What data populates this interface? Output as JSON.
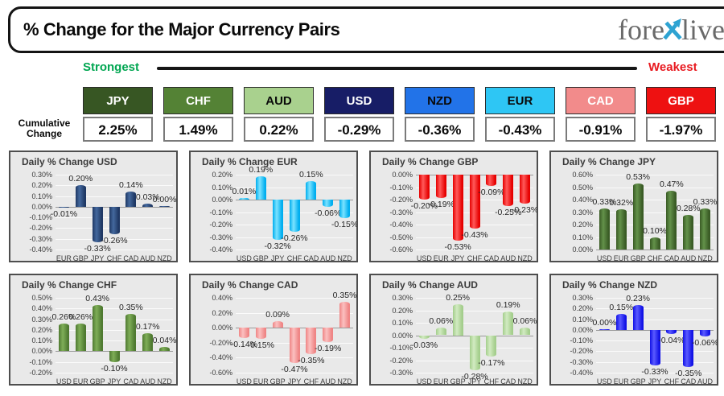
{
  "header": {
    "title": "% Change for the Major Currency Pairs",
    "logo": {
      "part1": "fore",
      "part2": "live",
      "x_color": "#2EA3D2",
      "text_color": "#6a6a6a"
    }
  },
  "scale_bar": {
    "strongest_label": "Strongest",
    "weakest_label": "Weakest",
    "strongest_color": "#00A651",
    "weakest_color": "#E8191F",
    "line_color": "#161616"
  },
  "cumulative": {
    "row_label": "Cumulative Change",
    "items": [
      {
        "code": "JPY",
        "value": "2.25%",
        "bg": "#375623",
        "fg": "#FFFFFF"
      },
      {
        "code": "CHF",
        "value": "1.49%",
        "bg": "#548235",
        "fg": "#FFFFFF"
      },
      {
        "code": "AUD",
        "value": "0.22%",
        "bg": "#A9D18E",
        "fg": "#0a0a0a"
      },
      {
        "code": "USD",
        "value": "-0.29%",
        "bg": "#171D66",
        "fg": "#FFFFFF"
      },
      {
        "code": "NZD",
        "value": "-0.36%",
        "bg": "#2273E8",
        "fg": "#0a0a0a"
      },
      {
        "code": "EUR",
        "value": "-0.43%",
        "bg": "#2EC6F4",
        "fg": "#0a0a0a"
      },
      {
        "code": "CAD",
        "value": "-0.91%",
        "bg": "#F28B8B",
        "fg": "#FFFFFF"
      },
      {
        "code": "GBP",
        "value": "-1.97%",
        "bg": "#EE1111",
        "fg": "#FFFFFF"
      }
    ]
  },
  "chart_data": [
    {
      "type": "bar",
      "title": "Daily % Change USD",
      "categories": [
        "EUR",
        "GBP",
        "JPY",
        "CHF",
        "CAD",
        "AUD",
        "NZD"
      ],
      "values": [
        -0.01,
        0.2,
        -0.33,
        -0.26,
        0.14,
        0.03,
        0.0
      ],
      "ylim": [
        -0.4,
        0.3
      ],
      "yticks": [
        0.3,
        0.2,
        0.1,
        0.0,
        -0.1,
        -0.2,
        -0.3,
        -0.4
      ],
      "grid": true,
      "value_suffix": "%",
      "bar_color": "#1F3864",
      "bar_color_light": "#44699E"
    },
    {
      "type": "bar",
      "title": "Daily % Change EUR",
      "categories": [
        "USD",
        "GBP",
        "JPY",
        "CHF",
        "CAD",
        "AUD",
        "NZD"
      ],
      "values": [
        0.01,
        0.19,
        -0.32,
        -0.26,
        0.15,
        -0.06,
        -0.15
      ],
      "ylim": [
        -0.4,
        0.2
      ],
      "yticks": [
        0.2,
        0.1,
        0.0,
        -0.1,
        -0.2,
        -0.3,
        -0.4
      ],
      "grid": true,
      "value_suffix": "%",
      "bar_color": "#00AEEF",
      "bar_color_light": "#7CE3FF"
    },
    {
      "type": "bar",
      "title": "Daily % Change GBP",
      "categories": [
        "USD",
        "EUR",
        "JPY",
        "CHF",
        "CAD",
        "AUD",
        "NZD"
      ],
      "values": [
        -0.2,
        -0.19,
        -0.53,
        -0.43,
        -0.09,
        -0.25,
        -0.23
      ],
      "ylim": [
        -0.6,
        0.0
      ],
      "yticks": [
        0.0,
        -0.1,
        -0.2,
        -0.3,
        -0.4,
        -0.5,
        -0.6
      ],
      "grid": true,
      "value_suffix": "%",
      "bar_color": "#E60000",
      "bar_color_light": "#FF5A5A"
    },
    {
      "type": "bar",
      "title": "Daily % Change JPY",
      "categories": [
        "USD",
        "EUR",
        "GBP",
        "CHF",
        "CAD",
        "AUD",
        "NZD"
      ],
      "values": [
        0.33,
        0.32,
        0.53,
        0.1,
        0.47,
        0.28,
        0.33
      ],
      "ylim": [
        0.0,
        0.6
      ],
      "yticks": [
        0.6,
        0.5,
        0.4,
        0.3,
        0.2,
        0.1,
        0.0
      ],
      "grid": true,
      "value_suffix": "%",
      "bar_color": "#3A5B25",
      "bar_color_light": "#63924A"
    },
    {
      "type": "bar",
      "title": "Daily % Change CHF",
      "categories": [
        "USD",
        "EUR",
        "GBP",
        "JPY",
        "CAD",
        "AUD",
        "NZD"
      ],
      "values": [
        0.26,
        0.26,
        0.43,
        -0.1,
        0.35,
        0.17,
        0.04
      ],
      "ylim": [
        -0.2,
        0.5
      ],
      "yticks": [
        0.5,
        0.4,
        0.3,
        0.2,
        0.1,
        0.0,
        -0.1,
        -0.2
      ],
      "grid": true,
      "value_suffix": "%",
      "bar_color": "#4F7A31",
      "bar_color_light": "#7FAE58"
    },
    {
      "type": "bar",
      "title": "Daily % Change CAD",
      "categories": [
        "USD",
        "EUR",
        "GBP",
        "JPY",
        "CHF",
        "AUD",
        "NZD"
      ],
      "values": [
        -0.14,
        -0.15,
        0.09,
        -0.47,
        -0.35,
        -0.19,
        0.35
      ],
      "ylim": [
        -0.6,
        0.4
      ],
      "yticks": [
        0.4,
        0.2,
        0.0,
        -0.2,
        -0.4,
        -0.6
      ],
      "grid": true,
      "value_suffix": "%",
      "bar_color": "#EF8585",
      "bar_color_light": "#FBC0C0"
    },
    {
      "type": "bar",
      "title": "Daily % Change AUD",
      "categories": [
        "USD",
        "EUR",
        "GBP",
        "JPY",
        "CHF",
        "CAD",
        "NZD"
      ],
      "values": [
        -0.03,
        0.06,
        0.25,
        -0.28,
        -0.17,
        0.19,
        0.06
      ],
      "ylim": [
        -0.3,
        0.3
      ],
      "yticks": [
        0.3,
        0.2,
        0.1,
        0.0,
        -0.1,
        -0.2,
        -0.3
      ],
      "grid": true,
      "value_suffix": "%",
      "bar_color": "#A4CE8C",
      "bar_color_light": "#D2EBC2"
    },
    {
      "type": "bar",
      "title": "Daily % Change NZD",
      "categories": [
        "USD",
        "EUR",
        "GBP",
        "JPY",
        "CHF",
        "CAD",
        "AUD"
      ],
      "values": [
        0.0,
        0.15,
        0.23,
        -0.33,
        -0.04,
        -0.35,
        -0.06
      ],
      "ylim": [
        -0.4,
        0.3
      ],
      "yticks": [
        0.3,
        0.2,
        0.1,
        0.0,
        -0.1,
        -0.2,
        -0.3,
        -0.4
      ],
      "grid": true,
      "value_suffix": "%",
      "bar_color": "#1212E6",
      "bar_color_light": "#5A5AFF"
    }
  ]
}
